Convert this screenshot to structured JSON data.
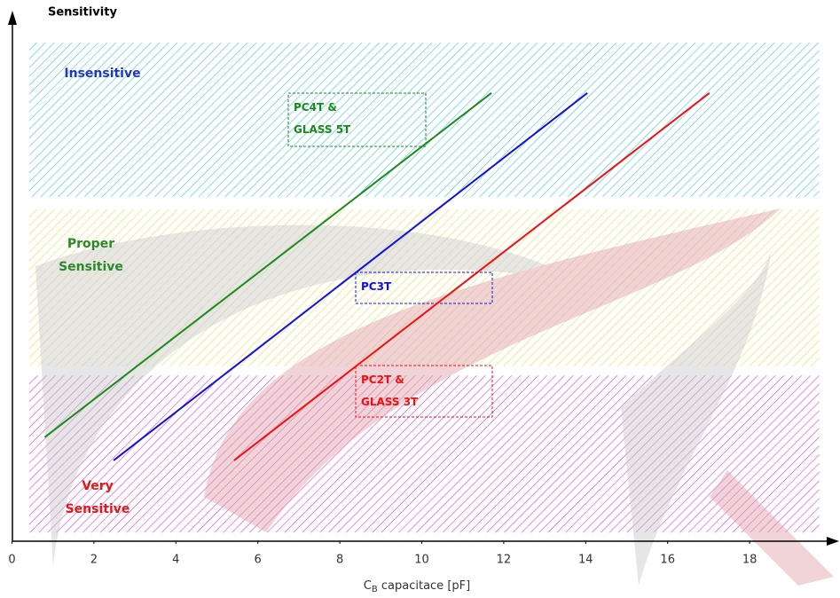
{
  "chart_data": {
    "type": "line",
    "y_label": "Sensitivity",
    "x_label": {
      "main": "C",
      "sub": "B",
      "rest": " capacitace [pF]"
    },
    "xlim": [
      0,
      20
    ],
    "ylim": [
      0,
      100
    ],
    "xticks": [
      0,
      2,
      4,
      6,
      8,
      10,
      12,
      14,
      16,
      18
    ],
    "regions": [
      {
        "label": "Insensitive",
        "range": [
          66.9,
          96.9
        ],
        "color": "#38c8d8",
        "label_color": "#2038c0"
      },
      {
        "label": "Proper Sensitive",
        "range": [
          34,
          64.5
        ],
        "color": "#e8dc50",
        "label_color": "#2a8a2a"
      },
      {
        "label": "Very Sensitive",
        "range": [
          1.7,
          32.2
        ],
        "color": "#d840d0",
        "label_color": "#e01818"
      }
    ],
    "series": [
      {
        "name": "PC4T & GLASS 5T",
        "color": "#1a8a1a",
        "x": [
          0.8,
          11.7
        ],
        "values": [
          20.2,
          87.1
        ]
      },
      {
        "name": "PC3T",
        "color": "#1010e0",
        "x": [
          2.48,
          14.04
        ],
        "values": [
          15.7,
          87.1
        ]
      },
      {
        "name": "PC2T & GLASS 3T",
        "color": "#f01010",
        "x": [
          5.42,
          17.02
        ],
        "values": [
          15.7,
          87.1
        ]
      }
    ]
  }
}
